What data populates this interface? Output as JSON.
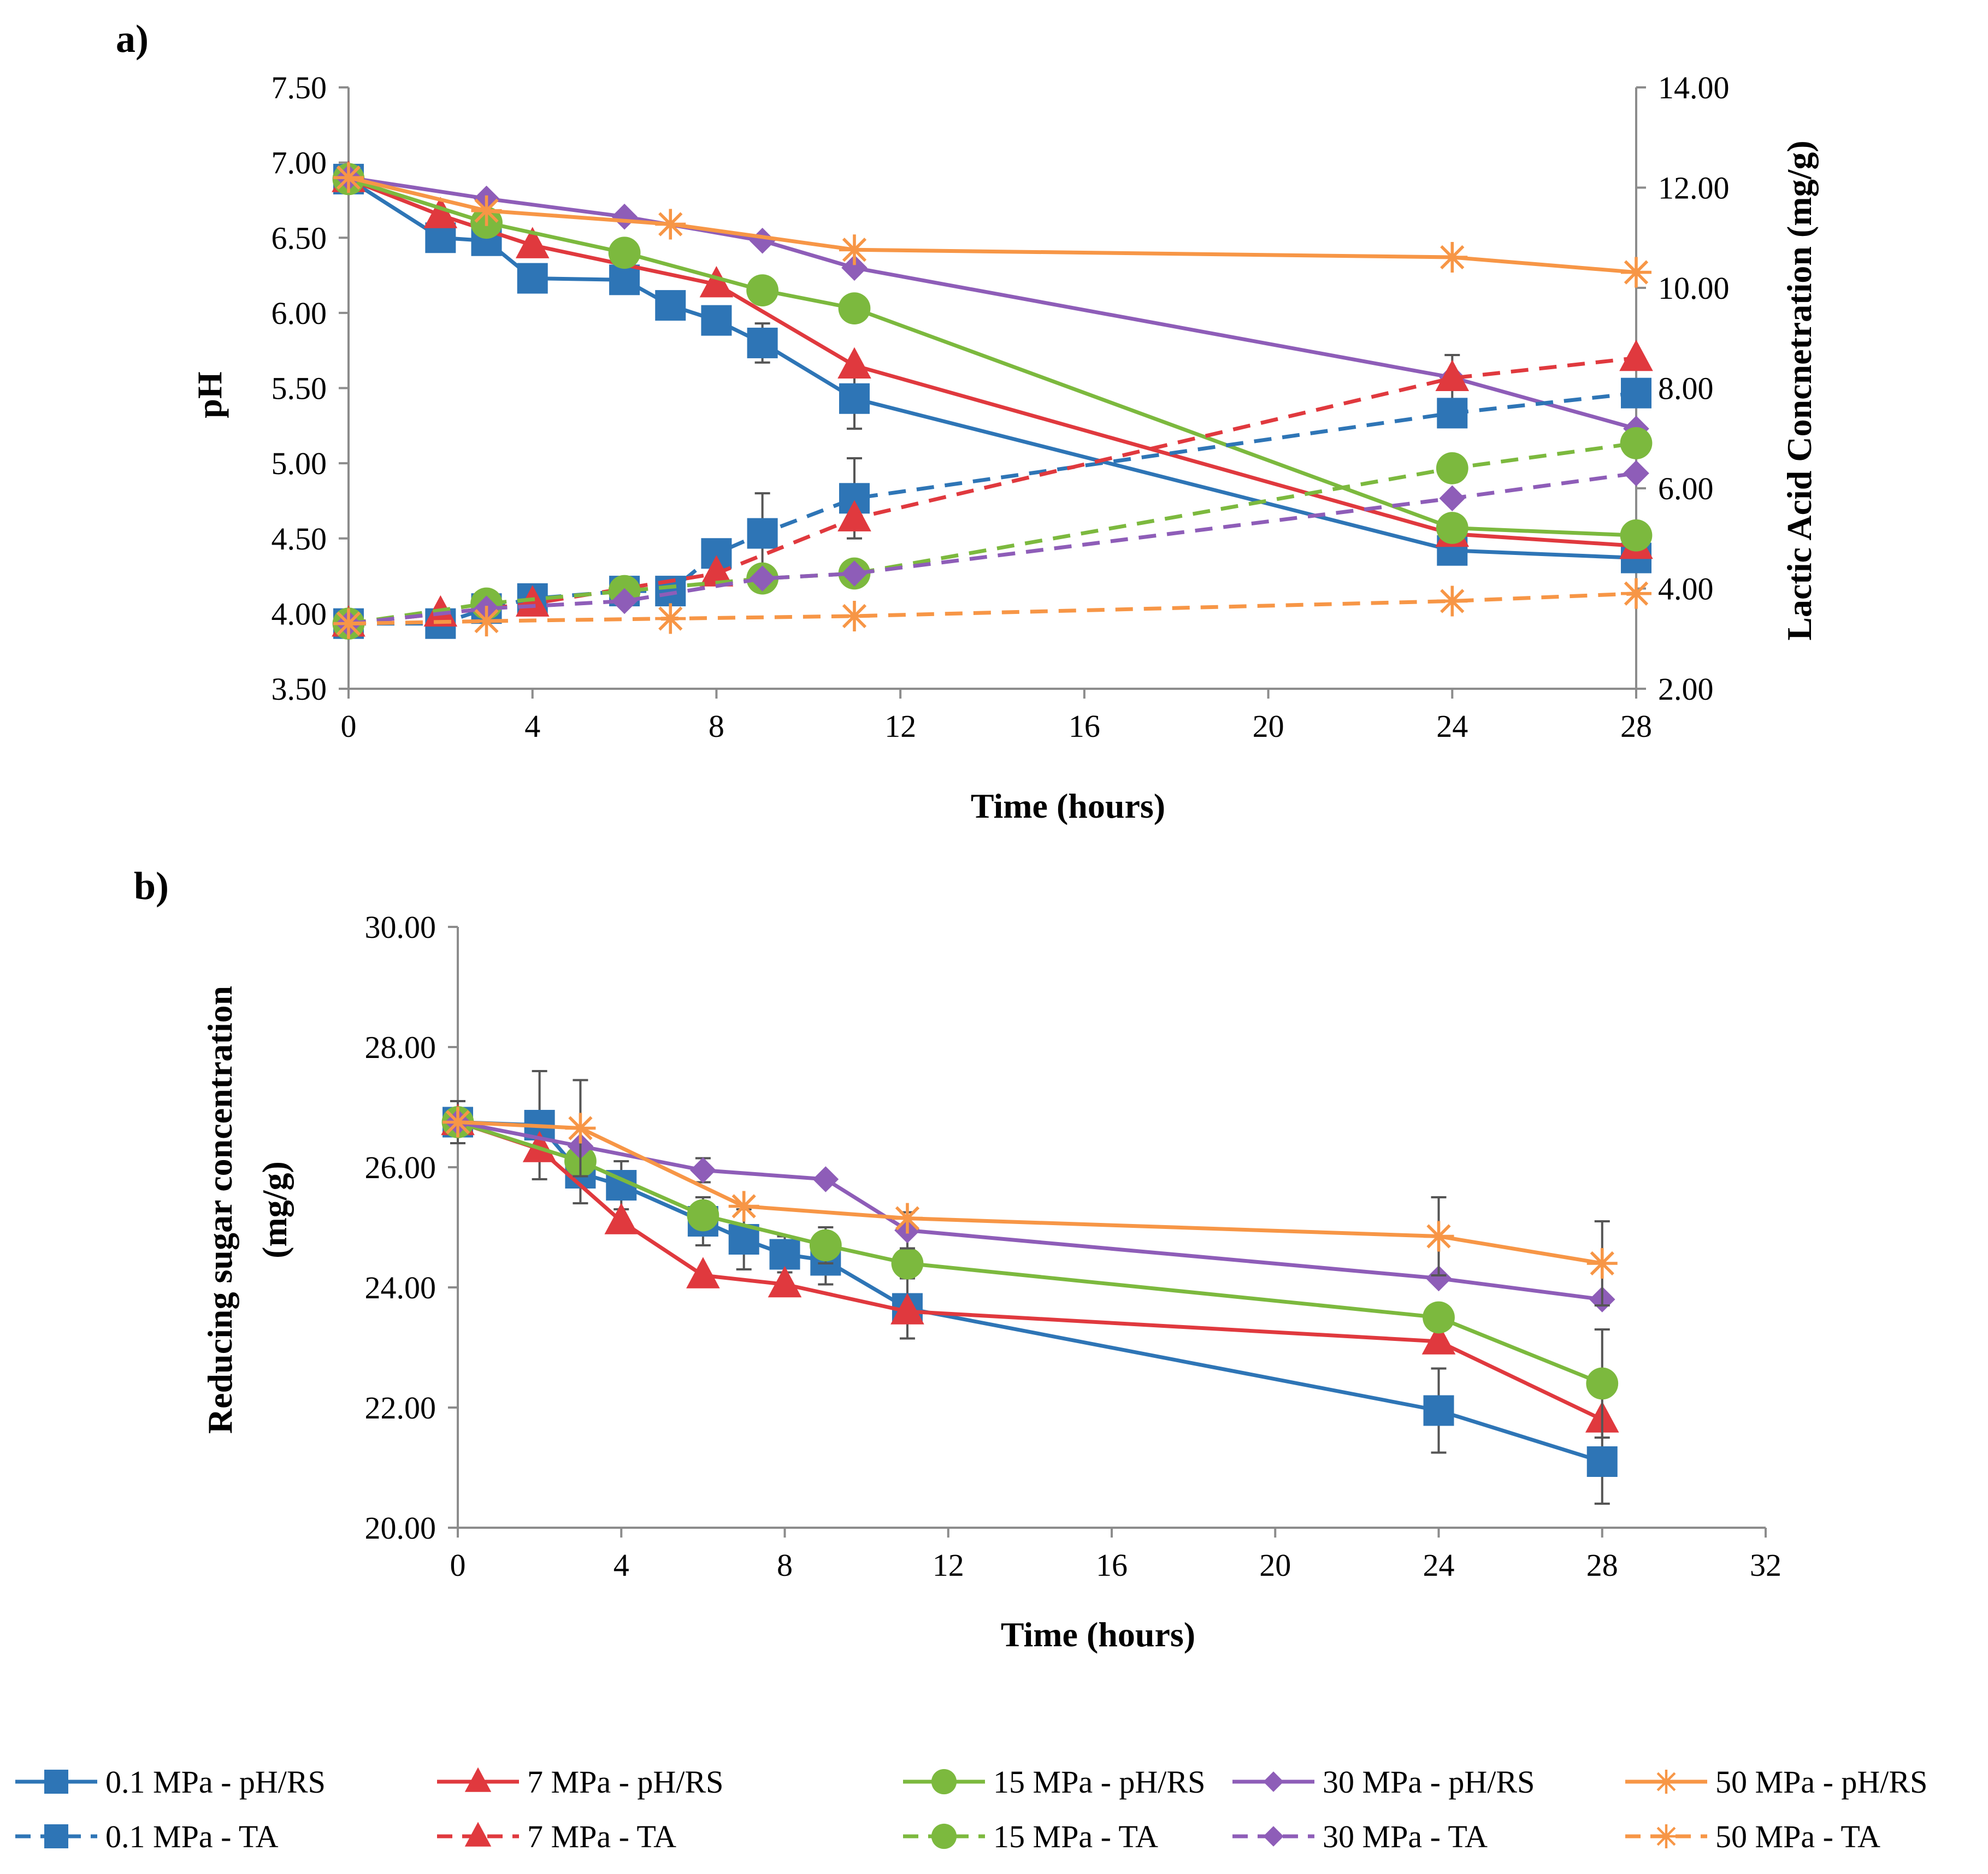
{
  "chart_data": [
    {
      "type": "line",
      "panel_label": "a)",
      "xlabel": "Time (hours)",
      "ylabel": "pH",
      "y2label": "Lactic Acid Concnetration (mg/g)",
      "xlim": [
        0,
        28
      ],
      "ylim": [
        3.5,
        7.5
      ],
      "y2lim": [
        2,
        14
      ],
      "x_ticks": [
        "0",
        "4",
        "8",
        "12",
        "16",
        "20",
        "24",
        "28"
      ],
      "y_ticks": [
        "3.50",
        "4.00",
        "4.50",
        "5.00",
        "5.50",
        "6.00",
        "6.50",
        "7.00",
        "7.50"
      ],
      "y2_ticks": [
        "2.00",
        "4.00",
        "6.00",
        "8.00",
        "10.00",
        "12.00",
        "14.00"
      ],
      "grid": false,
      "series": [
        {
          "name": "0.1  MPa - pH/RS",
          "axis": "left",
          "style": "solid",
          "marker": "square",
          "color": "#2e75b6",
          "x": [
            0,
            2,
            3,
            4,
            6,
            7,
            8,
            9,
            11,
            24,
            28
          ],
          "values": [
            6.89,
            6.5,
            6.48,
            6.23,
            6.22,
            6.05,
            5.95,
            5.8,
            5.43,
            4.42,
            4.37
          ],
          "errors": [
            0,
            0,
            0,
            0,
            0,
            0,
            0,
            0.13,
            0.2,
            0,
            0
          ]
        },
        {
          "name": "7 MPa - pH/RS",
          "axis": "left",
          "style": "solid",
          "marker": "triangle",
          "color": "#e0393e",
          "x": [
            0,
            2,
            4,
            8,
            11,
            24,
            28
          ],
          "values": [
            6.89,
            6.65,
            6.45,
            6.19,
            5.65,
            4.53,
            4.45
          ],
          "errors": [
            0,
            0,
            0,
            0,
            0,
            0,
            0
          ]
        },
        {
          "name": "15 MPa - pH/RS",
          "axis": "left",
          "style": "solid",
          "marker": "circle",
          "color": "#7cb93e",
          "x": [
            0,
            3,
            6,
            9,
            11,
            24,
            28
          ],
          "values": [
            6.89,
            6.6,
            6.4,
            6.15,
            6.03,
            4.57,
            4.52
          ],
          "errors": [
            0,
            0,
            0,
            0,
            0,
            0,
            0
          ]
        },
        {
          "name": "30 MPa - pH/RS",
          "axis": "left",
          "style": "solid",
          "marker": "diamond",
          "color": "#8e5db8",
          "x": [
            0,
            3,
            6,
            9,
            11,
            24,
            28
          ],
          "values": [
            6.9,
            6.76,
            6.64,
            6.48,
            6.3,
            5.57,
            5.23
          ],
          "errors": [
            0,
            0,
            0,
            0,
            0,
            0.15,
            0
          ]
        },
        {
          "name": "50 MPa - pH/RS",
          "axis": "left",
          "style": "solid",
          "marker": "star",
          "color": "#f79646",
          "x": [
            0,
            3,
            7,
            11,
            24,
            28
          ],
          "values": [
            6.9,
            6.68,
            6.59,
            6.42,
            6.37,
            6.27
          ],
          "errors": [
            0,
            0,
            0,
            0,
            0,
            0
          ]
        },
        {
          "name": "0.1 MPa - TA",
          "axis": "right",
          "style": "dashed",
          "marker": "square",
          "color": "#2e75b6",
          "x": [
            0,
            2,
            3,
            4,
            6,
            7,
            8,
            9,
            11,
            24,
            28
          ],
          "values": [
            3.3,
            3.3,
            3.6,
            3.8,
            3.95,
            3.95,
            4.7,
            5.1,
            5.8,
            7.5,
            7.9
          ],
          "errors": [
            0,
            0,
            0,
            0,
            0,
            0,
            0,
            0.8,
            0.8,
            0,
            0
          ]
        },
        {
          "name": "7 MPa - TA",
          "axis": "right",
          "style": "dashed",
          "marker": "triangle",
          "color": "#e0393e",
          "x": [
            0,
            2,
            4,
            8,
            11,
            24,
            28
          ],
          "values": [
            3.3,
            3.5,
            3.7,
            4.3,
            5.4,
            8.2,
            8.6
          ],
          "errors": [
            0,
            0,
            0,
            0,
            0,
            0,
            0
          ]
        },
        {
          "name": "15 MPa - TA",
          "axis": "right",
          "style": "dashed",
          "marker": "circle",
          "color": "#7cb93e",
          "x": [
            0,
            3,
            6,
            9,
            11,
            24,
            28
          ],
          "values": [
            3.3,
            3.7,
            3.95,
            4.2,
            4.3,
            6.4,
            6.9
          ],
          "errors": [
            0,
            0,
            0,
            0,
            0,
            0,
            0
          ]
        },
        {
          "name": "30 MPa - TA",
          "axis": "right",
          "style": "dashed",
          "marker": "diamond",
          "color": "#8e5db8",
          "x": [
            0,
            3,
            6,
            9,
            11,
            24,
            28
          ],
          "values": [
            3.3,
            3.6,
            3.75,
            4.2,
            4.3,
            5.8,
            6.3
          ],
          "errors": [
            0,
            0,
            0,
            0,
            0,
            0,
            0
          ]
        },
        {
          "name": "50 MPa - TA",
          "axis": "right",
          "style": "dashed",
          "marker": "star",
          "color": "#f79646",
          "x": [
            0,
            3,
            7,
            11,
            24,
            28
          ],
          "values": [
            3.3,
            3.35,
            3.4,
            3.45,
            3.75,
            3.9
          ],
          "errors": [
            0,
            0,
            0,
            0,
            0,
            0
          ]
        }
      ]
    },
    {
      "type": "line",
      "panel_label": "b)",
      "xlabel": "Time (hours)",
      "ylabel": [
        "Reducing sugar concentration",
        "(mg/g)"
      ],
      "xlim": [
        0,
        32
      ],
      "ylim": [
        20,
        30
      ],
      "x_ticks": [
        "0",
        "4",
        "8",
        "12",
        "16",
        "20",
        "24",
        "28",
        "32"
      ],
      "y_ticks": [
        "20.00",
        "22.00",
        "24.00",
        "26.00",
        "28.00",
        "30.00"
      ],
      "grid": false,
      "series": [
        {
          "name": "0.1  MPa - pH/RS",
          "style": "solid",
          "marker": "square",
          "color": "#2e75b6",
          "x": [
            0,
            2,
            3,
            4,
            6,
            7,
            8,
            9,
            11,
            24,
            28
          ],
          "values": [
            26.75,
            26.7,
            25.9,
            25.7,
            25.1,
            24.8,
            24.55,
            24.45,
            23.65,
            21.95,
            21.1
          ],
          "errors": [
            0.35,
            0.9,
            0.5,
            0.4,
            0.4,
            0.5,
            0.3,
            0.4,
            0.5,
            0.7,
            0.7
          ]
        },
        {
          "name": "7 MPa - pH/RS",
          "style": "solid",
          "marker": "triangle",
          "color": "#e0393e",
          "x": [
            0,
            2,
            4,
            6,
            8,
            11,
            24,
            28
          ],
          "values": [
            26.75,
            26.3,
            25.1,
            24.2,
            24.05,
            23.6,
            23.1,
            21.8
          ],
          "errors": [
            0,
            0,
            0,
            0,
            0,
            0,
            0,
            0
          ]
        },
        {
          "name": "15 MPa - pH/RS",
          "style": "solid",
          "marker": "circle",
          "color": "#7cb93e",
          "x": [
            0,
            3,
            6,
            9,
            11,
            24,
            28
          ],
          "values": [
            26.75,
            26.1,
            25.2,
            24.7,
            24.4,
            23.5,
            22.4
          ],
          "errors": [
            0,
            0,
            0,
            0.3,
            0,
            0,
            0.9
          ]
        },
        {
          "name": "30 MPa - pH/RS",
          "style": "solid",
          "marker": "diamond",
          "color": "#8e5db8",
          "x": [
            0,
            3,
            6,
            9,
            11,
            24,
            28
          ],
          "values": [
            26.75,
            26.35,
            25.95,
            25.8,
            24.95,
            24.15,
            23.8
          ],
          "errors": [
            0,
            0,
            0.2,
            0,
            0.3,
            0,
            0
          ]
        },
        {
          "name": "50 MPa - pH/RS",
          "style": "solid",
          "marker": "star",
          "color": "#f79646",
          "x": [
            0,
            3,
            7,
            11,
            24,
            28
          ],
          "values": [
            26.75,
            26.65,
            25.35,
            25.15,
            24.85,
            24.4
          ],
          "errors": [
            0,
            0.8,
            0,
            0,
            0.65,
            0.7
          ]
        }
      ]
    }
  ],
  "legend": {
    "placement": "bottom",
    "items": [
      {
        "label": "0.1  MPa - pH/RS",
        "style": "solid",
        "marker": "square",
        "color": "#2e75b6"
      },
      {
        "label": "7 MPa - pH/RS",
        "style": "solid",
        "marker": "triangle",
        "color": "#e0393e"
      },
      {
        "label": "15 MPa - pH/RS",
        "style": "solid",
        "marker": "circle",
        "color": "#7cb93e"
      },
      {
        "label": "30 MPa - pH/RS",
        "style": "solid",
        "marker": "diamond",
        "color": "#8e5db8"
      },
      {
        "label": "50 MPa - pH/RS",
        "style": "solid",
        "marker": "star",
        "color": "#f79646"
      },
      {
        "label": "0.1 MPa - TA",
        "style": "dashed",
        "marker": "square",
        "color": "#2e75b6"
      },
      {
        "label": "7 MPa - TA",
        "style": "dashed",
        "marker": "triangle",
        "color": "#e0393e"
      },
      {
        "label": "15 MPa - TA",
        "style": "dashed",
        "marker": "circle",
        "color": "#7cb93e"
      },
      {
        "label": "30 MPa - TA",
        "style": "dashed",
        "marker": "diamond",
        "color": "#8e5db8"
      },
      {
        "label": "50 MPa - TA",
        "style": "dashed",
        "marker": "star",
        "color": "#f79646"
      }
    ]
  }
}
